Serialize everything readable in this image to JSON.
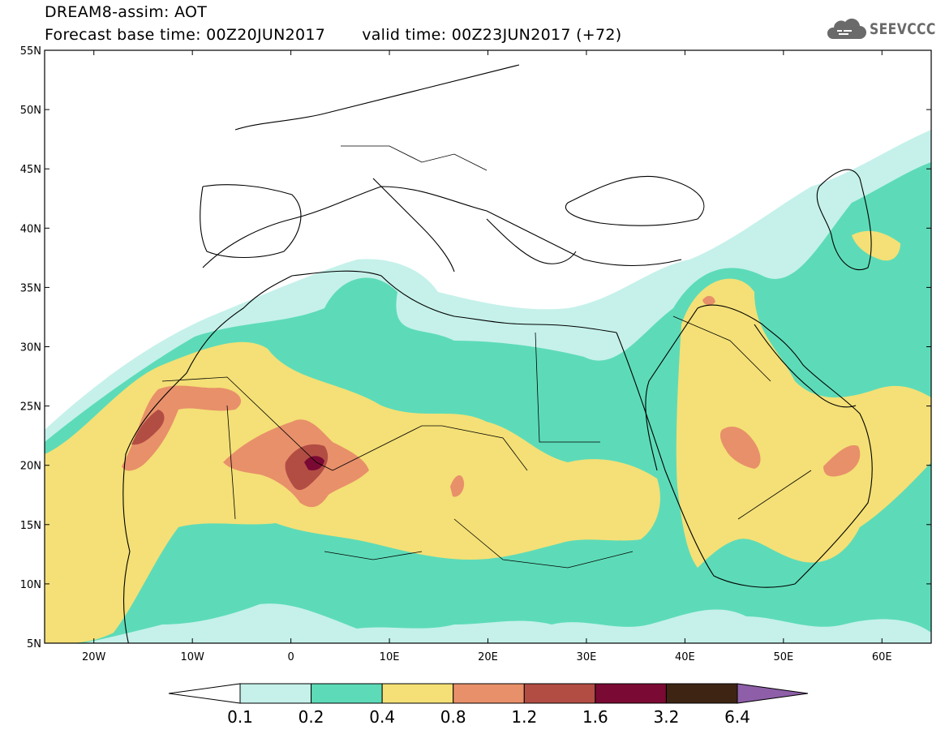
{
  "header": {
    "line1": "DREAM8-assim: AOT",
    "base_label": "Forecast base time: 00Z20JUN2017",
    "valid_label": "valid time: 00Z23JUN2017 (+72)",
    "logo_text": "SEEVCCC",
    "logo_icon": "cloud-icon"
  },
  "map": {
    "lon_ticks": [
      "20W",
      "10W",
      "0",
      "10E",
      "20E",
      "30E",
      "40E",
      "50E",
      "60E"
    ],
    "lat_ticks": [
      "55N",
      "50N",
      "45N",
      "40N",
      "35N",
      "30N",
      "25N",
      "20N",
      "15N",
      "10N",
      "5N"
    ],
    "extent": {
      "lon_min": -25,
      "lon_max": 65,
      "lat_min": 5,
      "lat_max": 55
    }
  },
  "legend": {
    "levels": [
      "0.1",
      "0.2",
      "0.4",
      "0.8",
      "1.2",
      "1.6",
      "3.2",
      "6.4"
    ],
    "colors": [
      "#c5f1ea",
      "#5ddbb8",
      "#f4e076",
      "#e8906a",
      "#b24d44",
      "#7a0a33",
      "#3d2413"
    ],
    "under_color": "#ffffff",
    "over_color": "#8e5fa8"
  }
}
